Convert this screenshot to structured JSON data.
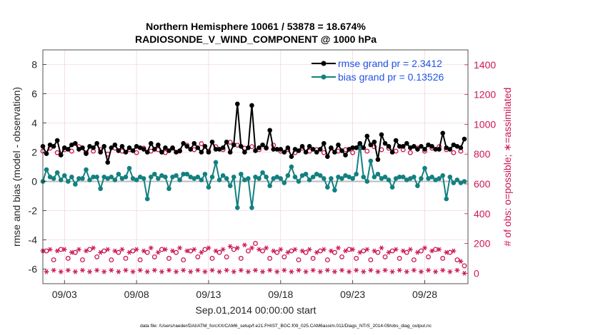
{
  "chart_data": {
    "type": "line",
    "title": "Northern Hemisphere 10061 / 53878 = 18.674%",
    "subtitle": "RADIOSONDE_V_WIND_COMPONENT @ 1000 hPa",
    "xlabel": "Sep.01,2014 00:00:00 start",
    "ylabel_left": "rmse and bias (model - observation)",
    "ylabel_right": "# of obs: o=possible; ∗=assimilated",
    "footnote": "data file: /Users/raeder/DAI/ATM_forcXX/CAM6_setup/f.e21.FHIST_BGC.f09_025.CAM6assim.011/Diags_NTrS_2014-09/obs_diag_output.nc",
    "x_ticks": [
      {
        "day": 3,
        "label": "09/03"
      },
      {
        "day": 8,
        "label": "09/08"
      },
      {
        "day": 13,
        "label": "09/13"
      },
      {
        "day": 18,
        "label": "09/18"
      },
      {
        "day": 23,
        "label": "09/23"
      },
      {
        "day": 28,
        "label": "09/28"
      }
    ],
    "xlim": [
      1.5,
      31.0
    ],
    "left_axis": {
      "ylim": [
        -7,
        9
      ],
      "ticks": [
        -6,
        -4,
        -2,
        0,
        2,
        4,
        6,
        8
      ]
    },
    "right_axis": {
      "ylim": [
        -70,
        1500
      ],
      "ticks": [
        0,
        200,
        400,
        600,
        800,
        1000,
        1200,
        1400
      ]
    },
    "grid": true,
    "legend_position": "top-right",
    "colors": {
      "rmse": "#000000",
      "bias": "#138080",
      "obs": "#cc1556",
      "legend_text": "#1f54e6",
      "zero_line": "#bbbbbb"
    },
    "series": [
      {
        "name": "rmse grand pr = 2.3412",
        "key": "rmse",
        "x": [
          1.5,
          1.75,
          2.0,
          2.25,
          2.5,
          2.75,
          3.0,
          3.25,
          3.5,
          3.75,
          4.0,
          4.25,
          4.5,
          4.75,
          5.0,
          5.25,
          5.5,
          5.75,
          6.0,
          6.25,
          6.5,
          6.75,
          7.0,
          7.25,
          7.5,
          7.75,
          8.0,
          8.25,
          8.5,
          8.75,
          9.0,
          9.25,
          9.5,
          9.75,
          10.0,
          10.25,
          10.5,
          10.75,
          11.0,
          11.25,
          11.5,
          11.75,
          12.0,
          12.25,
          12.5,
          12.75,
          13.0,
          13.25,
          13.5,
          13.75,
          14.0,
          14.25,
          14.5,
          14.75,
          15.0,
          15.25,
          15.5,
          15.75,
          16.0,
          16.25,
          16.5,
          16.75,
          17.0,
          17.25,
          17.5,
          17.75,
          18.0,
          18.25,
          18.5,
          18.75,
          19.0,
          19.25,
          19.5,
          19.75,
          20.0,
          20.25,
          20.5,
          20.75,
          21.0,
          21.25,
          21.5,
          21.75,
          22.0,
          22.25,
          22.5,
          22.75,
          23.0,
          23.25,
          23.5,
          23.75,
          24.0,
          24.25,
          24.5,
          24.75,
          25.0,
          25.25,
          25.5,
          25.75,
          26.0,
          26.25,
          26.5,
          26.75,
          27.0,
          27.25,
          27.5,
          27.75,
          28.0,
          28.25,
          28.5,
          28.75,
          29.0,
          29.25,
          29.5,
          29.75,
          30.0,
          30.25,
          30.5,
          30.75
        ],
        "values": [
          2.4,
          1.9,
          2.5,
          2.4,
          2.8,
          1.8,
          2.3,
          2.2,
          2.5,
          2.6,
          2.2,
          2.3,
          1.9,
          2.4,
          2.3,
          2.6,
          2.0,
          2.4,
          1.3,
          2.3,
          2.5,
          2.1,
          2.4,
          2.0,
          2.3,
          2.1,
          2.4,
          2.3,
          2.2,
          2.0,
          2.6,
          2.2,
          2.5,
          2.0,
          2.3,
          2.1,
          2.3,
          2.0,
          2.1,
          2.6,
          2.4,
          2.2,
          2.6,
          2.3,
          2.0,
          2.4,
          2.0,
          2.7,
          2.2,
          2.2,
          2.3,
          2.7,
          2.0,
          2.5,
          5.3,
          2.4,
          2.0,
          2.3,
          5.2,
          2.1,
          2.3,
          2.5,
          2.3,
          3.5,
          2.2,
          2.2,
          2.2,
          2.0,
          2.3,
          1.7,
          2.2,
          2.1,
          2.4,
          2.0,
          2.4,
          2.2,
          2.0,
          2.2,
          2.6,
          1.7,
          2.3,
          2.0,
          2.5,
          2.1,
          1.8,
          2.2,
          2.3,
          2.3,
          2.6,
          2.3,
          3.1,
          2.5,
          2.7,
          1.5,
          3.2,
          2.6,
          2.4,
          2.0,
          2.8,
          2.4,
          2.4,
          2.6,
          2.3,
          2.4,
          2.2,
          2.4,
          2.2,
          2.5,
          2.4,
          2.2,
          2.2,
          3.3,
          2.3,
          2.2,
          2.5,
          2.4,
          2.3,
          2.9
        ]
      },
      {
        "name": "bias grand pr = 0.13526",
        "key": "bias",
        "x": [
          1.5,
          1.75,
          2.0,
          2.25,
          2.5,
          2.75,
          3.0,
          3.25,
          3.5,
          3.75,
          4.0,
          4.25,
          4.5,
          4.75,
          5.0,
          5.25,
          5.5,
          5.75,
          6.0,
          6.25,
          6.5,
          6.75,
          7.0,
          7.25,
          7.5,
          7.75,
          8.0,
          8.25,
          8.5,
          8.75,
          9.0,
          9.25,
          9.5,
          9.75,
          10.0,
          10.25,
          10.5,
          10.75,
          11.0,
          11.25,
          11.5,
          11.75,
          12.0,
          12.25,
          12.5,
          12.75,
          13.0,
          13.25,
          13.5,
          13.75,
          14.0,
          14.25,
          14.5,
          14.75,
          15.0,
          15.25,
          15.5,
          15.75,
          16.0,
          16.25,
          16.5,
          16.75,
          17.0,
          17.25,
          17.5,
          17.75,
          18.0,
          18.25,
          18.5,
          18.75,
          19.0,
          19.25,
          19.5,
          19.75,
          20.0,
          20.25,
          20.5,
          20.75,
          21.0,
          21.25,
          21.5,
          21.75,
          22.0,
          22.25,
          22.5,
          22.75,
          23.0,
          23.25,
          23.5,
          23.75,
          24.0,
          24.25,
          24.5,
          24.75,
          25.0,
          25.25,
          25.5,
          25.75,
          26.0,
          26.25,
          26.5,
          26.75,
          27.0,
          27.25,
          27.5,
          27.75,
          28.0,
          28.25,
          28.5,
          28.75,
          29.0,
          29.25,
          29.5,
          29.75,
          30.0,
          30.25,
          30.5,
          30.75
        ],
        "values": [
          0.0,
          0.8,
          0.3,
          0.2,
          0.6,
          0.1,
          0.4,
          0.0,
          0.3,
          -0.2,
          0.2,
          0.2,
          0.8,
          0.1,
          0.3,
          0.3,
          -0.5,
          0.3,
          0.2,
          0.3,
          0.1,
          0.5,
          0.2,
          0.3,
          0.9,
          0.2,
          0.1,
          0.3,
          0.2,
          -1.2,
          0.3,
          0.5,
          0.2,
          0.4,
          0.3,
          -0.5,
          0.3,
          0.4,
          0.1,
          0.5,
          0.5,
          0.3,
          0.2,
          0.3,
          0.1,
          0.5,
          -0.4,
          0.3,
          1.3,
          0.1,
          0.4,
          0.2,
          -0.3,
          0.3,
          -1.8,
          0.5,
          0.1,
          0.2,
          -1.8,
          0.3,
          0.2,
          0.6,
          0.3,
          -0.3,
          0.2,
          0.3,
          0.2,
          -0.1,
          0.4,
          1.0,
          0.3,
          0.0,
          0.4,
          0.5,
          0.1,
          0.3,
          0.5,
          0.4,
          0.2,
          -0.4,
          0.2,
          -0.6,
          0.3,
          0.2,
          0.4,
          0.3,
          0.2,
          0.5,
          2.5,
          0.3,
          0.0,
          1.4,
          0.3,
          0.5,
          0.2,
          0.3,
          0.1,
          -0.4,
          0.2,
          0.3,
          0.3,
          0.1,
          0.2,
          0.3,
          -0.3,
          0.2,
          0.9,
          0.2,
          0.3,
          0.1,
          0.2,
          0.4,
          -1.2,
          0.3,
          -0.1,
          0.1,
          -0.1,
          0.0
        ]
      },
      {
        "name": "possible",
        "key": "obs_possible",
        "x": [
          1.5,
          1.75,
          2.0,
          2.25,
          2.5,
          2.75,
          3.0,
          3.25,
          3.5,
          3.75,
          4.0,
          4.25,
          4.5,
          4.75,
          5.0,
          5.25,
          5.5,
          5.75,
          6.0,
          6.25,
          6.5,
          6.75,
          7.0,
          7.25,
          7.5,
          7.75,
          8.0,
          8.25,
          8.5,
          8.75,
          9.0,
          9.25,
          9.5,
          9.75,
          10.0,
          10.25,
          10.5,
          10.75,
          11.0,
          11.25,
          11.5,
          11.75,
          12.0,
          12.25,
          12.5,
          12.75,
          13.0,
          13.25,
          13.5,
          13.75,
          14.0,
          14.25,
          14.5,
          14.75,
          15.0,
          15.25,
          15.5,
          15.75,
          16.0,
          16.25,
          16.5,
          16.75,
          17.0,
          17.25,
          17.5,
          17.75,
          18.0,
          18.25,
          18.5,
          18.75,
          19.0,
          19.25,
          19.5,
          19.75,
          20.0,
          20.25,
          20.5,
          20.75,
          21.0,
          21.25,
          21.5,
          21.75,
          22.0,
          22.25,
          22.5,
          22.75,
          23.0,
          23.25,
          23.5,
          23.75,
          24.0,
          24.25,
          24.5,
          24.75,
          25.0,
          25.25,
          25.5,
          25.75,
          26.0,
          26.25,
          26.5,
          26.75,
          27.0,
          27.25,
          27.5,
          27.75,
          28.0,
          28.25,
          28.5,
          28.75,
          29.0,
          29.25,
          29.5,
          29.75,
          30.0,
          30.25,
          30.5,
          30.75
        ],
        "values": [
          820,
          150,
          840,
          90,
          810,
          160,
          830,
          100,
          820,
          140,
          850,
          90,
          810,
          160,
          820,
          110,
          830,
          150,
          800,
          90,
          840,
          140,
          820,
          100,
          830,
          150,
          810,
          90,
          840,
          140,
          820,
          110,
          830,
          160,
          810,
          100,
          840,
          140,
          820,
          90,
          860,
          150,
          830,
          110,
          870,
          160,
          820,
          100,
          850,
          140,
          830,
          110,
          880,
          160,
          860,
          100,
          840,
          150,
          850,
          200,
          830,
          150,
          840,
          100,
          860,
          140,
          820,
          110,
          830,
          150,
          810,
          90,
          840,
          140,
          820,
          100,
          830,
          150,
          810,
          90,
          840,
          140,
          820,
          110,
          830,
          160,
          810,
          100,
          840,
          150,
          820,
          90,
          850,
          140,
          830,
          110,
          840,
          150,
          820,
          100,
          830,
          140,
          810,
          90,
          840,
          150,
          820,
          110,
          840,
          160,
          850,
          100,
          830,
          140,
          810,
          90,
          820,
          50
        ]
      },
      {
        "name": "assimilated",
        "key": "obs_assimilated",
        "x": [
          1.5,
          1.75,
          2.0,
          2.25,
          2.5,
          2.75,
          3.0,
          3.25,
          3.5,
          3.75,
          4.0,
          4.25,
          4.5,
          4.75,
          5.0,
          5.25,
          5.5,
          5.75,
          6.0,
          6.25,
          6.5,
          6.75,
          7.0,
          7.25,
          7.5,
          7.75,
          8.0,
          8.25,
          8.5,
          8.75,
          9.0,
          9.25,
          9.5,
          9.75,
          10.0,
          10.25,
          10.5,
          10.75,
          11.0,
          11.25,
          11.5,
          11.75,
          12.0,
          12.25,
          12.5,
          12.75,
          13.0,
          13.25,
          13.5,
          13.75,
          14.0,
          14.25,
          14.5,
          14.75,
          15.0,
          15.25,
          15.5,
          15.75,
          16.0,
          16.25,
          16.5,
          16.75,
          17.0,
          17.25,
          17.5,
          17.75,
          18.0,
          18.25,
          18.5,
          18.75,
          19.0,
          19.25,
          19.5,
          19.75,
          20.0,
          20.25,
          20.5,
          20.75,
          21.0,
          21.25,
          21.5,
          21.75,
          22.0,
          22.25,
          22.5,
          22.75,
          23.0,
          23.25,
          23.5,
          23.75,
          24.0,
          24.25,
          24.5,
          24.75,
          25.0,
          25.25,
          25.5,
          25.75,
          26.0,
          26.25,
          26.5,
          26.75,
          27.0,
          27.25,
          27.5,
          27.75,
          28.0,
          28.25,
          28.5,
          28.75,
          29.0,
          29.25,
          29.5,
          29.75,
          30.0,
          30.25,
          30.5,
          30.75
        ],
        "values": [
          150,
          10,
          160,
          20,
          150,
          10,
          160,
          20,
          140,
          10,
          160,
          20,
          150,
          10,
          170,
          20,
          140,
          10,
          160,
          20,
          150,
          10,
          160,
          20,
          140,
          10,
          160,
          20,
          150,
          10,
          170,
          20,
          140,
          10,
          160,
          20,
          150,
          10,
          170,
          20,
          150,
          10,
          160,
          20,
          140,
          10,
          170,
          20,
          150,
          10,
          160,
          20,
          180,
          10,
          170,
          20,
          190,
          10,
          170,
          20,
          160,
          10,
          170,
          20,
          150,
          10,
          160,
          20,
          140,
          10,
          160,
          20,
          150,
          10,
          160,
          20,
          140,
          10,
          160,
          20,
          150,
          10,
          170,
          20,
          150,
          10,
          160,
          20,
          140,
          10,
          160,
          20,
          150,
          10,
          170,
          20,
          140,
          10,
          160,
          20,
          150,
          10,
          160,
          20,
          140,
          10,
          170,
          20,
          150,
          10,
          160,
          20,
          140,
          10,
          150,
          20,
          80,
          0
        ]
      }
    ]
  }
}
